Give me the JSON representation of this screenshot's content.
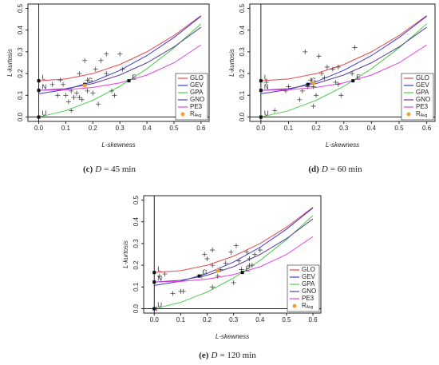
{
  "chart_data": [
    {
      "type": "line",
      "caption_label": "(c)",
      "caption_var": "D",
      "caption_rest": "= 45 min",
      "x_label": "L-skewness",
      "y_label": "L-kurtosis",
      "xlim": [
        -0.04,
        0.63
      ],
      "ylim": [
        -0.02,
        0.52
      ],
      "xticks": [
        {
          "value": 0,
          "label": "0.0"
        },
        0.1,
        0.2,
        0.3,
        0.4,
        0.5,
        0.6
      ],
      "yticks": [
        {
          "value": 0,
          "label": "0.0"
        },
        0.1,
        0.2,
        0.3,
        0.4,
        0.5
      ],
      "legend": "bottom-right",
      "x": [
        0,
        0.1,
        0.2,
        0.3,
        0.4,
        0.5,
        0.6
      ],
      "series": [
        {
          "name": "GLO",
          "color": "#e8474a",
          "values": [
            0.1667,
            0.175,
            0.2,
            0.2417,
            0.3,
            0.375,
            0.4667
          ]
        },
        {
          "name": "GEV",
          "color": "#3a3ad6",
          "values": [
            0.107,
            0.1265,
            0.1626,
            0.215,
            0.2826,
            0.366,
            0.4637
          ]
        },
        {
          "name": "GPA",
          "color": "#4ccc4c",
          "values": [
            0,
            0.0294,
            0.0769,
            0.1415,
            0.2222,
            0.3182,
            0.4286
          ]
        },
        {
          "name": "GNO",
          "color": "#5b3c9c",
          "values": [
            0.1228,
            0.1306,
            0.154,
            0.1936,
            0.2495,
            0.3226,
            0.4133
          ]
        },
        {
          "name": "PE3",
          "color": "#e040e0",
          "values": [
            0.1226,
            0.1256,
            0.1362,
            0.1571,
            0.193,
            0.2496,
            0.3317
          ]
        }
      ],
      "sites": {
        "x": [
          0.05,
          0.07,
          0.08,
          0.09,
          0.1,
          0.11,
          0.12,
          0.12,
          0.13,
          0.14,
          0.15,
          0.15,
          0.16,
          0.17,
          0.18,
          0.18,
          0.2,
          0.21,
          0.22,
          0.23,
          0.25,
          0.25,
          0.27,
          0.28,
          0.3,
          0.31
        ],
        "values": [
          0.15,
          0.1,
          0.17,
          0.15,
          0.1,
          0.07,
          0.12,
          0.03,
          0.09,
          0.11,
          0.2,
          0.09,
          0.08,
          0.26,
          0.12,
          0.17,
          0.11,
          0.22,
          0.06,
          0.26,
          0.29,
          0.2,
          0.12,
          0.1,
          0.29,
          0.22
        ]
      },
      "ravg": {
        "name": "R",
        "name_sub": "Avg",
        "color": "#f0a030",
        "x": 0.17,
        "value": 0.145
      },
      "special_points": {
        "labels": [
          "L",
          "N",
          "U",
          "G",
          "E"
        ],
        "x": [
          0,
          0,
          0,
          0.1699,
          0.3333
        ],
        "values": [
          0.1667,
          0.1226,
          0,
          0.1504,
          0.1667
        ]
      }
    },
    {
      "type": "line",
      "caption_label": "(d)",
      "caption_var": "D",
      "caption_rest": "= 60 min",
      "x_label": "L-skewness",
      "y_label": "L-kurtosis",
      "xlim": [
        -0.04,
        0.63
      ],
      "ylim": [
        -0.02,
        0.52
      ],
      "xticks": [
        {
          "value": 0,
          "label": "0.0"
        },
        0.1,
        0.2,
        0.3,
        0.4,
        0.5,
        0.6
      ],
      "yticks": [
        {
          "value": 0,
          "label": "0.0"
        },
        0.1,
        0.2,
        0.3,
        0.4,
        0.5
      ],
      "legend": "bottom-right",
      "x": [
        0,
        0.1,
        0.2,
        0.3,
        0.4,
        0.5,
        0.6
      ],
      "series": [
        {
          "name": "GLO",
          "color": "#e8474a",
          "values": [
            0.1667,
            0.175,
            0.2,
            0.2417,
            0.3,
            0.375,
            0.4667
          ]
        },
        {
          "name": "GEV",
          "color": "#3a3ad6",
          "values": [
            0.107,
            0.1265,
            0.1626,
            0.215,
            0.2826,
            0.366,
            0.4637
          ]
        },
        {
          "name": "GPA",
          "color": "#4ccc4c",
          "values": [
            0,
            0.0294,
            0.0769,
            0.1415,
            0.2222,
            0.3182,
            0.4286
          ]
        },
        {
          "name": "GNO",
          "color": "#5b3c9c",
          "values": [
            0.1228,
            0.1306,
            0.154,
            0.1936,
            0.2495,
            0.3226,
            0.4133
          ]
        },
        {
          "name": "PE3",
          "color": "#e040e0",
          "values": [
            0.1226,
            0.1256,
            0.1362,
            0.1571,
            0.193,
            0.2496,
            0.3317
          ]
        }
      ],
      "sites": {
        "x": [
          0.02,
          0.05,
          0.09,
          0.1,
          0.14,
          0.15,
          0.16,
          0.17,
          0.18,
          0.19,
          0.19,
          0.2,
          0.21,
          0.22,
          0.23,
          0.24,
          0.26,
          0.27,
          0.28,
          0.28,
          0.29,
          0.33,
          0.34
        ],
        "values": [
          0.16,
          0.03,
          0.12,
          0.14,
          0.08,
          0.12,
          0.3,
          0.14,
          0.17,
          0.14,
          0.05,
          0.1,
          0.28,
          0.2,
          0.18,
          0.23,
          0.22,
          0.16,
          0.15,
          0.23,
          0.1,
          0.2,
          0.32
        ]
      },
      "ravg": {
        "name": "R",
        "name_sub": "Avg",
        "color": "#f0a030",
        "x": 0.19,
        "value": 0.155
      },
      "special_points": {
        "labels": [
          "L",
          "N",
          "U",
          "G",
          "E"
        ],
        "x": [
          0,
          0,
          0,
          0.1699,
          0.3333
        ],
        "values": [
          0.1667,
          0.1226,
          0,
          0.1504,
          0.1667
        ]
      }
    },
    {
      "type": "line",
      "caption_label": "(e)",
      "caption_var": "D",
      "caption_rest": "= 120 min",
      "x_label": "L-skewness",
      "y_label": "L-kurtosis",
      "xlim": [
        -0.04,
        0.63
      ],
      "ylim": [
        -0.02,
        0.52
      ],
      "xticks": [
        {
          "value": 0,
          "label": "0.0"
        },
        0.1,
        0.2,
        0.3,
        0.4,
        0.5,
        0.6
      ],
      "yticks": [
        {
          "value": 0,
          "label": "0.0"
        },
        0.1,
        0.2,
        0.3,
        0.4,
        0.5
      ],
      "legend": "bottom-right",
      "x": [
        0,
        0.1,
        0.2,
        0.3,
        0.4,
        0.5,
        0.6
      ],
      "series": [
        {
          "name": "GLO",
          "color": "#e8474a",
          "values": [
            0.1667,
            0.175,
            0.2,
            0.2417,
            0.3,
            0.375,
            0.4667
          ]
        },
        {
          "name": "GEV",
          "color": "#3a3ad6",
          "values": [
            0.107,
            0.1265,
            0.1626,
            0.215,
            0.2826,
            0.366,
            0.4637
          ]
        },
        {
          "name": "GPA",
          "color": "#4ccc4c",
          "values": [
            0,
            0.0294,
            0.0769,
            0.1415,
            0.2222,
            0.3182,
            0.4286
          ]
        },
        {
          "name": "GNO",
          "color": "#5b3c9c",
          "values": [
            0.1228,
            0.1306,
            0.154,
            0.1936,
            0.2495,
            0.3226,
            0.4133
          ]
        },
        {
          "name": "PE3",
          "color": "#e040e0",
          "values": [
            0.1226,
            0.1256,
            0.1362,
            0.1571,
            0.193,
            0.2496,
            0.3317
          ]
        }
      ],
      "sites": {
        "x": [
          0.01,
          0.02,
          0.04,
          0.07,
          0.1,
          0.11,
          0.18,
          0.19,
          0.2,
          0.22,
          0.22,
          0.22,
          0.24,
          0.25,
          0.27,
          0.29,
          0.3,
          0.31,
          0.32,
          0.33,
          0.35,
          0.36,
          0.36,
          0.37,
          0.38,
          0.4
        ],
        "values": [
          0,
          0.15,
          0.16,
          0.07,
          0.08,
          0.08,
          0.15,
          0.25,
          0.23,
          0.27,
          0.2,
          0.1,
          0.15,
          0.18,
          0.21,
          0.26,
          0.12,
          0.29,
          0.22,
          0.18,
          0.26,
          0.2,
          0.23,
          0.2,
          0.25,
          0.27
        ]
      },
      "ravg": {
        "name": "R",
        "name_sub": "Avg",
        "color": "#f0a030",
        "x": 0.24,
        "value": 0.175
      },
      "special_points": {
        "labels": [
          "L",
          "N",
          "U",
          "G",
          "E"
        ],
        "x": [
          0,
          0,
          0,
          0.1699,
          0.3333
        ],
        "values": [
          0.1667,
          0.1226,
          0,
          0.1504,
          0.1667
        ]
      }
    }
  ]
}
